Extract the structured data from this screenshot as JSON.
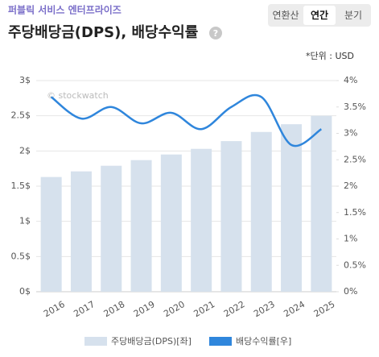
{
  "company": "퍼블릭 서비스 엔터프라이즈",
  "tabs": [
    {
      "label": "연환산",
      "selected": false
    },
    {
      "label": "연간",
      "selected": true
    },
    {
      "label": "분기",
      "selected": false
    }
  ],
  "unit": "*단위 : USD",
  "watermark": "© stockwatch",
  "chart_data": {
    "type": "bar_line",
    "title": "주당배당금(DPS), 배당수익률",
    "categories": [
      "2016",
      "2017",
      "2018",
      "2019",
      "2020",
      "2021",
      "2022",
      "2023",
      "2024",
      "2025"
    ],
    "series": [
      {
        "name": "주당배당금(DPS)[좌]",
        "type": "bar",
        "axis": "y",
        "color": "#d6e1ed",
        "values": [
          1.63,
          1.71,
          1.79,
          1.87,
          1.95,
          2.03,
          2.14,
          2.27,
          2.38,
          2.5
        ]
      },
      {
        "name": "배당수익률[우]",
        "type": "line",
        "axis": "y2",
        "color": "#2f86dc",
        "values": [
          3.69,
          3.28,
          3.5,
          3.19,
          3.39,
          3.08,
          3.5,
          3.69,
          2.78,
          3.08
        ]
      }
    ],
    "ylim": [
      0,
      3
    ],
    "yticks": [
      {
        "value": 0,
        "label": "0$"
      },
      {
        "value": 0.5,
        "label": "0.5$"
      },
      {
        "value": 1,
        "label": "1$"
      },
      {
        "value": 1.5,
        "label": "1.5$"
      },
      {
        "value": 2,
        "label": "2$"
      },
      {
        "value": 2.5,
        "label": "2.5$"
      },
      {
        "value": 3,
        "label": "3$"
      }
    ],
    "y2lim": [
      0,
      4
    ],
    "y2ticks": [
      {
        "value": 0,
        "label": "0%"
      },
      {
        "value": 0.5,
        "label": "0.5%"
      },
      {
        "value": 1,
        "label": "1%"
      },
      {
        "value": 1.5,
        "label": "1.5%"
      },
      {
        "value": 2,
        "label": "2%"
      },
      {
        "value": 2.5,
        "label": "2.5%"
      },
      {
        "value": 3,
        "label": "3%"
      },
      {
        "value": 3.5,
        "label": "3.5%"
      },
      {
        "value": 4,
        "label": "4%"
      }
    ],
    "grid": true,
    "legend": "bottom"
  }
}
